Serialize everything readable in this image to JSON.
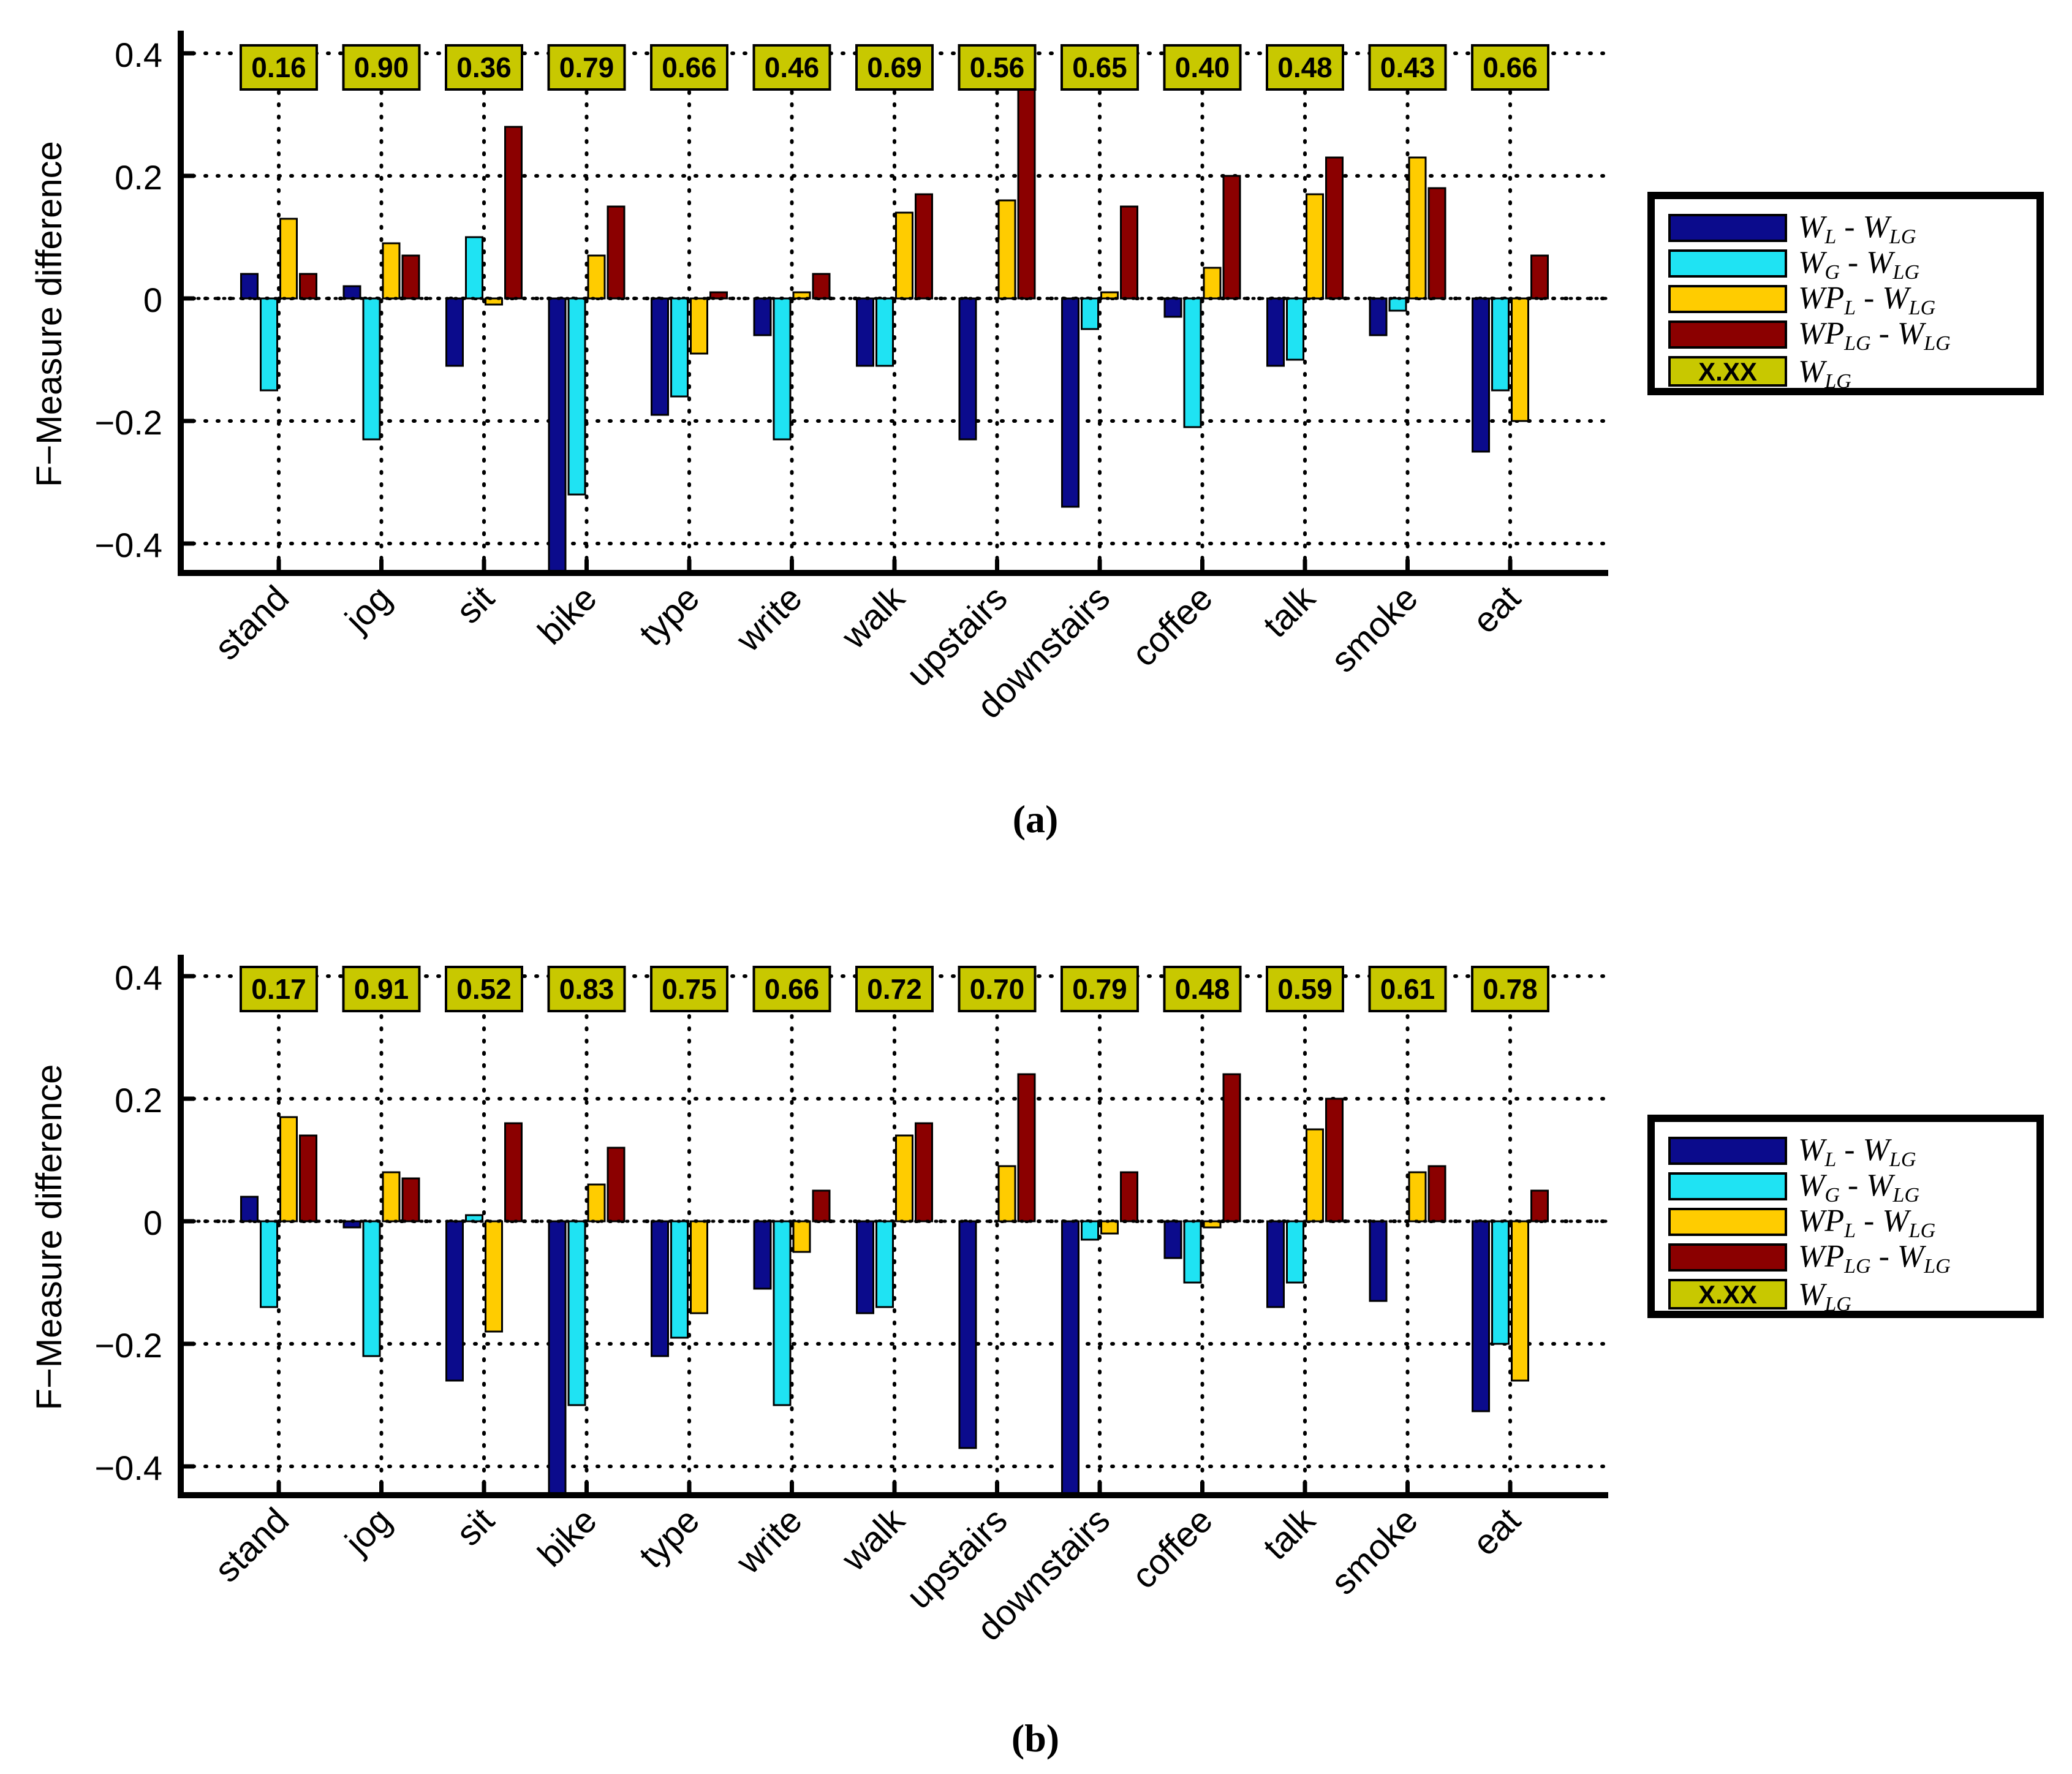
{
  "legend_entries": [
    {
      "main": "W",
      "sub": "L",
      "sep": " - ",
      "main2": "W",
      "sub2": "LG",
      "color": "#0b0b8c"
    },
    {
      "main": "W",
      "sub": "G",
      "sep": " - ",
      "main2": "W",
      "sub2": "LG",
      "color": "#1fe3f3"
    },
    {
      "main": "WP",
      "sub": "L",
      "sep": " - ",
      "main2": "W",
      "sub2": "LG",
      "color": "#ffcc00"
    },
    {
      "main": "WP",
      "sub": "LG",
      "sep": " - ",
      "main2": "W",
      "sub2": "LG",
      "color": "#8b0000"
    }
  ],
  "legend_box_entry": {
    "sample": "X.XX",
    "main": "W",
    "sub": "LG",
    "box_color": "#c8c800"
  },
  "chart_data": [
    {
      "type": "bar",
      "caption": "(a)",
      "ylabel": "F−Measure difference",
      "xlabel": "",
      "ylim": [
        -0.45,
        0.45
      ],
      "yticks": [
        0.4,
        0.2,
        0,
        -0.2,
        -0.4
      ],
      "ytick_labels": [
        "0.4",
        "0.2",
        "0",
        "−0.2",
        "−0.4"
      ],
      "grid": true,
      "legend_position": "right",
      "categories": [
        "stand",
        "jog",
        "sit",
        "bike",
        "type",
        "write",
        "walk",
        "upstairs",
        "downstairs",
        "coffee",
        "talk",
        "smoke",
        "eat"
      ],
      "series": [
        {
          "name": "W_L - W_LG",
          "values": [
            0.04,
            0.02,
            -0.11,
            -0.45,
            -0.19,
            -0.06,
            -0.11,
            -0.23,
            -0.34,
            -0.03,
            -0.11,
            -0.06,
            -0.25
          ]
        },
        {
          "name": "W_G - W_LG",
          "values": [
            -0.15,
            -0.23,
            0.1,
            -0.32,
            -0.16,
            -0.23,
            -0.11,
            0.0,
            -0.05,
            -0.21,
            -0.1,
            -0.02,
            -0.15
          ]
        },
        {
          "name": "WP_L - W_LG",
          "values": [
            0.13,
            0.09,
            -0.01,
            0.07,
            -0.09,
            0.01,
            0.14,
            0.16,
            0.01,
            0.05,
            0.17,
            0.23,
            -0.2
          ]
        },
        {
          "name": "WP_LG - W_LG",
          "values": [
            0.04,
            0.07,
            0.28,
            0.15,
            0.01,
            0.04,
            0.17,
            0.35,
            0.15,
            0.2,
            0.23,
            0.18,
            0.07
          ]
        }
      ],
      "wlg_labels": [
        "0.16",
        "0.90",
        "0.36",
        "0.79",
        "0.66",
        "0.46",
        "0.69",
        "0.56",
        "0.65",
        "0.40",
        "0.48",
        "0.43",
        "0.66"
      ]
    },
    {
      "type": "bar",
      "caption": "(b)",
      "ylabel": "F−Measure difference",
      "xlabel": "",
      "ylim": [
        -0.45,
        0.45
      ],
      "yticks": [
        0.4,
        0.2,
        0,
        -0.2,
        -0.4
      ],
      "ytick_labels": [
        "0.4",
        "0.2",
        "0",
        "−0.2",
        "−0.4"
      ],
      "grid": true,
      "legend_position": "right",
      "categories": [
        "stand",
        "jog",
        "sit",
        "bike",
        "type",
        "write",
        "walk",
        "upstairs",
        "downstairs",
        "coffee",
        "talk",
        "smoke",
        "eat"
      ],
      "series": [
        {
          "name": "W_L - W_LG",
          "values": [
            0.04,
            -0.01,
            -0.26,
            -0.45,
            -0.22,
            -0.11,
            -0.15,
            -0.37,
            -0.45,
            -0.06,
            -0.14,
            -0.13,
            -0.31
          ]
        },
        {
          "name": "W_G - W_LG",
          "values": [
            -0.14,
            -0.22,
            0.01,
            -0.3,
            -0.19,
            -0.3,
            -0.14,
            0.0,
            -0.03,
            -0.1,
            -0.1,
            0.0,
            -0.2
          ]
        },
        {
          "name": "WP_L - W_LG",
          "values": [
            0.17,
            0.08,
            -0.18,
            0.06,
            -0.15,
            -0.05,
            0.14,
            0.09,
            -0.02,
            -0.01,
            0.15,
            0.08,
            -0.26
          ]
        },
        {
          "name": "WP_LG - W_LG",
          "values": [
            0.14,
            0.07,
            0.16,
            0.12,
            0.0,
            0.05,
            0.16,
            0.24,
            0.08,
            0.24,
            0.2,
            0.09,
            0.05
          ]
        }
      ],
      "wlg_labels": [
        "0.17",
        "0.91",
        "0.52",
        "0.83",
        "0.75",
        "0.66",
        "0.72",
        "0.70",
        "0.79",
        "0.48",
        "0.59",
        "0.61",
        "0.78"
      ]
    }
  ]
}
